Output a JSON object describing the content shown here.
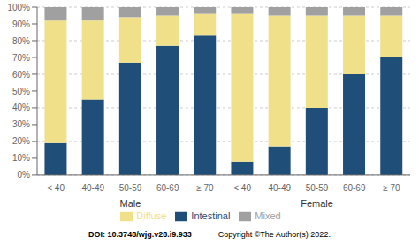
{
  "chart_data": {
    "type": "bar",
    "stacked": true,
    "categories": [
      "< 40",
      "40-49",
      "50-59",
      "60-69",
      "≥ 70",
      "< 40",
      "40-49",
      "50-59",
      "60-69",
      "≥ 70"
    ],
    "series": [
      {
        "name": "Intestinal",
        "color": "#1f4e79",
        "values": [
          19,
          45,
          67,
          77,
          83,
          8,
          17,
          40,
          60,
          70
        ]
      },
      {
        "name": "Diffuse",
        "color": "#f0e08a",
        "values": [
          73,
          47,
          27,
          18,
          13,
          88,
          78,
          55,
          35,
          25
        ]
      },
      {
        "name": "Mixed",
        "color": "#a0a0a0",
        "values": [
          8,
          8,
          6,
          5,
          4,
          4,
          5,
          5,
          5,
          5
        ]
      }
    ],
    "ylim": [
      0,
      100
    ],
    "yticks": [
      {
        "value": 0,
        "label": "0%"
      },
      {
        "value": 10,
        "label": "10%"
      },
      {
        "value": 20,
        "label": "20%"
      },
      {
        "value": 30,
        "label": "30%"
      },
      {
        "value": 40,
        "label": "40%"
      },
      {
        "value": 50,
        "label": "50%"
      },
      {
        "value": 60,
        "label": "60%"
      },
      {
        "value": 70,
        "label": "70%"
      },
      {
        "value": 80,
        "label": "80%"
      },
      {
        "value": 90,
        "label": "90%"
      },
      {
        "value": 100,
        "label": "100%"
      }
    ],
    "grid": true,
    "legend": "bottom",
    "annotations": [
      "Male",
      "Female",
      "DOI: 10.3748/wjg.v28.i9.933",
      "Copyright ©The Author(s) 2022."
    ]
  }
}
